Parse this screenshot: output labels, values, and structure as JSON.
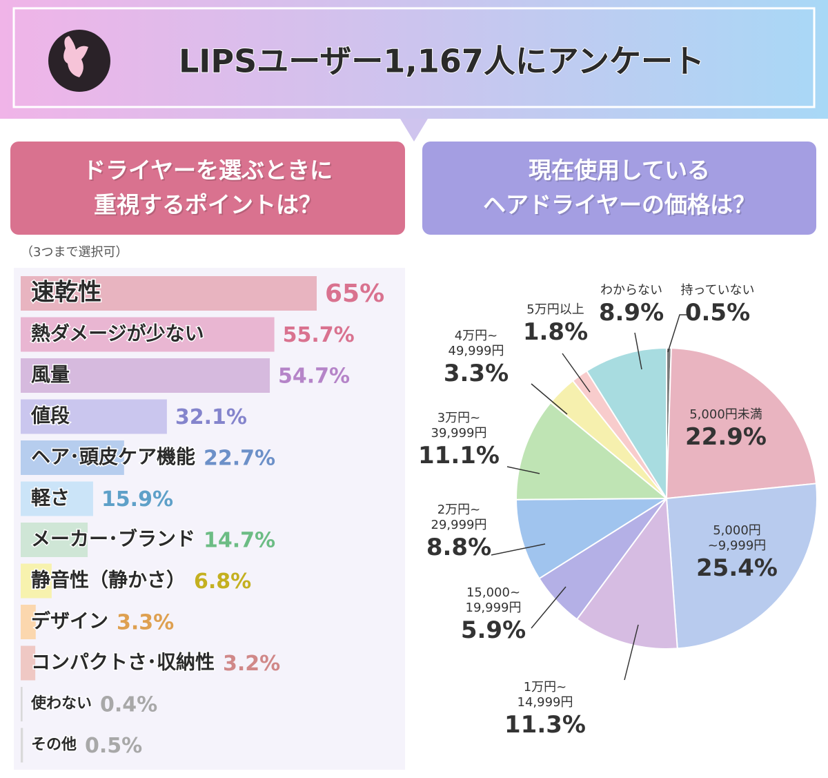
{
  "header": {
    "title": "LIPSユーザー1,167人にアンケート"
  },
  "chart_data": [
    {
      "type": "hbar",
      "title": "ドライヤーを選ぶときに\n重視するポイントは？",
      "subtitle": "（3つまで選択可）",
      "categories": [
        "速乾性",
        "熱ダメージが少ない",
        "風量",
        "値段",
        "ヘア･頭皮ケア機能",
        "軽さ",
        "メーカー･ブランド",
        "静音性（静かさ）",
        "デザイン",
        "コンパクトさ･収納性",
        "使わない",
        "その他"
      ],
      "values": [
        65,
        55.7,
        54.7,
        32.1,
        22.7,
        15.9,
        14.7,
        6.8,
        3.3,
        3.2,
        0.4,
        0.5
      ],
      "value_labels": [
        "65%",
        "55.7%",
        "54.7%",
        "32.1%",
        "22.7%",
        "15.9%",
        "14.7%",
        "6.8%",
        "3.3%",
        "3.2%",
        "0.4%",
        "0.5%"
      ],
      "colors": [
        "#e8b4c0",
        "#e9b6d2",
        "#d6bade",
        "#cac6ee",
        "#b6cdee",
        "#cbe4f8",
        "#cfe6d6",
        "#f7f2ae",
        "#fbd7ae",
        "#efc8c4",
        "#d9d9d9",
        "#d9d9d9"
      ],
      "label_colors": [
        "#d9728f",
        "#d9728f",
        "#b584c8",
        "#8484cc",
        "#6c90c8",
        "#5ea0c8",
        "#6cbc84",
        "#c4b020",
        "#dea050",
        "#d08888",
        "#a8a8a8",
        "#a8a8a8"
      ]
    },
    {
      "type": "pie",
      "title": "現在使用している\nヘアドライヤーの価格は？",
      "categories": [
        "持っていない",
        "5,000円未満",
        "5,000円~9,999円",
        "1万円~\n14,999円",
        "15,000~\n19,999円",
        "2万円~\n29,999円",
        "3万円~\n39,999円",
        "4万円~\n49,999円",
        "5万円以上",
        "わからない"
      ],
      "values": [
        0.5,
        22.9,
        25.4,
        11.3,
        5.9,
        8.8,
        11.1,
        3.3,
        1.8,
        8.9
      ],
      "value_labels": [
        "0.5%",
        "22.9%",
        "25.4%",
        "11.3%",
        "5.9%",
        "8.8%",
        "11.1%",
        "3.3%",
        "1.8%",
        "8.9%"
      ],
      "colors": [
        "#7a7a7a",
        "#e9b4c0",
        "#b8cbee",
        "#d6bce2",
        "#b4b0e6",
        "#a0c4ee",
        "#bfe4b4",
        "#f6f0ae",
        "#f8cccc",
        "#a8dce0"
      ]
    }
  ]
}
